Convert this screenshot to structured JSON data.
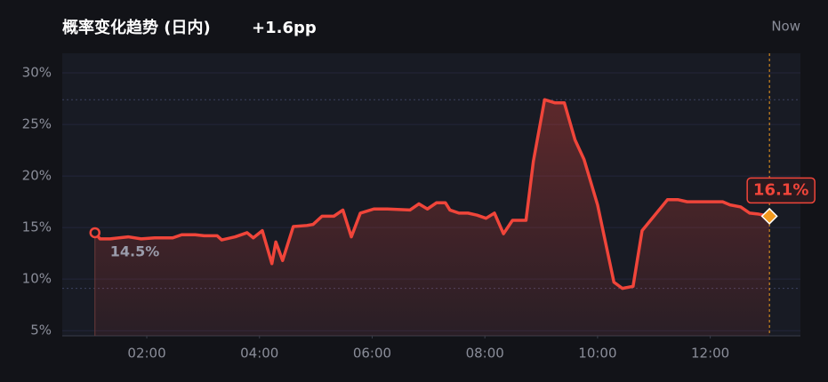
{
  "chart_data": {
    "type": "line",
    "title": "概率变化趋势 (日内)",
    "subtitle": "+1.6pp",
    "now_label": "Now",
    "x": [
      1.08,
      1.17,
      1.35,
      1.67,
      1.9,
      2.14,
      2.46,
      2.62,
      2.86,
      3.02,
      3.25,
      3.33,
      3.57,
      3.78,
      3.89,
      4.05,
      4.22,
      4.29,
      4.41,
      4.6,
      4.84,
      4.95,
      5.11,
      5.32,
      5.48,
      5.63,
      5.79,
      6.03,
      6.27,
      6.67,
      6.83,
      6.98,
      7.14,
      7.3,
      7.38,
      7.54,
      7.7,
      7.86,
      8.02,
      8.17,
      8.33,
      8.49,
      8.73,
      8.86,
      9.06,
      9.24,
      9.41,
      9.6,
      9.76,
      10.0,
      10.29,
      10.44,
      10.63,
      10.79,
      11.24,
      11.43,
      11.59,
      12.06,
      12.22,
      12.35,
      12.54,
      12.7,
      12.86,
      13.05
    ],
    "values": [
      14.5,
      13.9,
      13.9,
      14.1,
      13.9,
      14.0,
      14.0,
      14.3,
      14.3,
      14.2,
      14.2,
      13.8,
      14.1,
      14.5,
      14.0,
      14.7,
      11.5,
      13.6,
      11.8,
      15.1,
      15.2,
      15.3,
      16.1,
      16.1,
      16.7,
      14.1,
      16.4,
      16.8,
      16.8,
      16.7,
      17.3,
      16.8,
      17.4,
      17.4,
      16.7,
      16.4,
      16.4,
      16.2,
      15.9,
      16.4,
      14.4,
      15.7,
      15.7,
      21.4,
      27.4,
      27.1,
      27.1,
      23.5,
      21.6,
      17.2,
      9.7,
      9.1,
      9.3,
      14.7,
      17.7,
      17.7,
      17.5,
      17.5,
      17.5,
      17.2,
      17.0,
      16.4,
      16.3,
      16.1
    ],
    "value_labels": [
      "14.5%",
      null,
      null,
      null,
      null,
      null,
      null,
      null,
      null,
      null,
      null,
      null,
      null,
      null,
      null,
      null,
      null,
      null,
      null,
      null,
      null,
      null,
      null,
      null,
      null,
      null,
      null,
      null,
      null,
      null,
      null,
      null,
      null,
      null,
      null,
      null,
      null,
      null,
      null,
      null,
      null,
      null,
      null,
      null,
      null,
      null,
      null,
      null,
      null,
      null,
      null,
      null,
      null,
      null,
      null,
      null,
      null,
      null,
      null,
      null,
      null,
      null,
      null,
      "16.1%"
    ],
    "color": "#f0453a",
    "end_marker_color": "#f29a1f",
    "xlim": [
      0.5,
      13.6
    ],
    "xticks": [
      {
        "value": 2,
        "label": "02:00"
      },
      {
        "value": 4,
        "label": "04:00"
      },
      {
        "value": 6,
        "label": "06:00"
      },
      {
        "value": 8,
        "label": "08:00"
      },
      {
        "value": 10,
        "label": "10:00"
      },
      {
        "value": 12,
        "label": "12:00"
      }
    ],
    "ylim": [
      4.5,
      31.9
    ],
    "yticks": [
      {
        "value": 5,
        "label": "5%"
      },
      {
        "value": 10,
        "label": "10%"
      },
      {
        "value": 15,
        "label": "15%"
      },
      {
        "value": 20,
        "label": "20%"
      },
      {
        "value": 25,
        "label": "25%"
      },
      {
        "value": 30,
        "label": "30%"
      }
    ],
    "grid": true
  }
}
